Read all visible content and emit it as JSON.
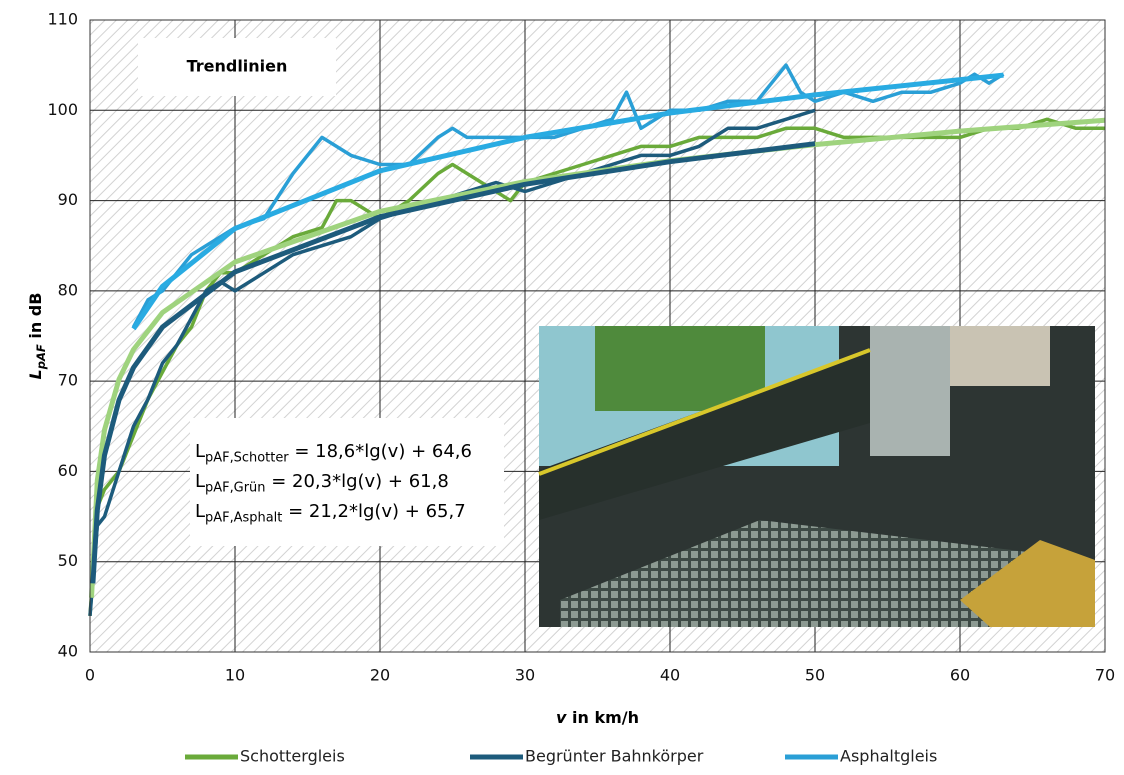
{
  "chart_data": {
    "type": "line",
    "xlabel": {
      "main": "v",
      "rest": " in km/h"
    },
    "ylabel": {
      "main": "L",
      "sub": "pAF",
      "rest": " in dB"
    },
    "xlim": [
      0,
      70
    ],
    "ylim": [
      40,
      110
    ],
    "xticks": [
      0,
      10,
      20,
      30,
      40,
      50,
      60,
      70
    ],
    "yticks": [
      40,
      50,
      60,
      70,
      80,
      90,
      100,
      110
    ],
    "grid": true,
    "series": [
      {
        "name": "Schottergleis",
        "color": "#6aaa3a",
        "x": [
          0,
          0.5,
          1,
          2,
          3,
          4,
          5,
          6,
          7,
          8,
          9,
          10,
          12,
          14,
          16,
          17,
          18,
          20,
          22,
          24,
          25,
          26,
          28,
          29,
          30,
          32,
          34,
          36,
          38,
          40,
          42,
          44,
          46,
          48,
          50,
          52,
          54,
          56,
          58,
          60,
          62,
          64,
          66,
          68,
          70
        ],
        "values": [
          44,
          56,
          58,
          60,
          64,
          68,
          71,
          74,
          76,
          80,
          82,
          82,
          84,
          86,
          87,
          90,
          90,
          88,
          90,
          93,
          94,
          93,
          91,
          90,
          92,
          93,
          94,
          95,
          96,
          96,
          97,
          97,
          97,
          98,
          98,
          97,
          97,
          97,
          97,
          97,
          98,
          98,
          99,
          98,
          98
        ]
      },
      {
        "name": "Begrünter Bahnkörper",
        "color": "#1d5b7c",
        "x": [
          0,
          0.5,
          1,
          2,
          3,
          4,
          5,
          6,
          7,
          8,
          9,
          10,
          12,
          14,
          16,
          18,
          20,
          22,
          24,
          26,
          28,
          30,
          32,
          34,
          36,
          38,
          40,
          42,
          44,
          46,
          48,
          50
        ],
        "values": [
          44,
          54,
          55,
          60,
          65,
          68,
          72,
          74,
          77,
          80,
          81,
          80,
          82,
          84,
          85,
          86,
          88,
          89,
          90,
          91,
          92,
          91,
          92,
          93,
          94,
          95,
          95,
          96,
          98,
          98,
          99,
          100
        ]
      },
      {
        "name": "Asphaltgleis",
        "color": "#2a9fd6",
        "x": [
          3,
          4,
          5,
          6,
          7,
          8,
          9,
          10,
          12,
          14,
          16,
          17,
          18,
          20,
          22,
          24,
          25,
          26,
          28,
          30,
          32,
          34,
          36,
          37,
          38,
          40,
          42,
          44,
          46,
          47,
          48,
          49,
          50,
          52,
          54,
          56,
          58,
          60,
          61,
          62,
          63
        ],
        "values": [
          76,
          79,
          80,
          82,
          84,
          85,
          86,
          87,
          88,
          93,
          97,
          96,
          95,
          94,
          94,
          97,
          98,
          97,
          97,
          97,
          97,
          98,
          99,
          102,
          98,
          100,
          100,
          101,
          101,
          103,
          105,
          102,
          101,
          102,
          101,
          102,
          102,
          103,
          104,
          103,
          104
        ]
      }
    ],
    "trendlines": [
      {
        "color": "#9fd37e",
        "x": [
          0.1,
          0.5,
          1,
          2,
          3,
          5,
          10,
          20,
          30,
          40,
          50,
          60,
          70
        ],
        "values": [
          46,
          59,
          64.6,
          70.2,
          73.5,
          77.6,
          83.2,
          88.8,
          92.1,
          94.4,
          96.2,
          97.7,
          98.9
        ]
      },
      {
        "color": "#1d5b7c",
        "x": [
          0.2,
          0.5,
          1,
          2,
          3,
          5,
          10,
          20,
          30,
          40,
          50
        ],
        "values": [
          47.6,
          55.7,
          61.8,
          67.9,
          71.5,
          76,
          82.1,
          88.2,
          91.8,
          94.3,
          96.3
        ]
      },
      {
        "color": "#29abe2",
        "x": [
          3,
          5,
          10,
          20,
          30,
          40,
          50,
          63
        ],
        "values": [
          75.8,
          80.5,
          86.9,
          93.3,
          97,
          99.7,
          101.7,
          103.9
        ]
      }
    ],
    "box_title": "Trendlinien",
    "equations": [
      {
        "main": "L",
        "sub": "pAF,Schotter",
        "rest": " = 18,6*lg(v) + 64,6"
      },
      {
        "main": "L",
        "sub": "pAF,Grün",
        "rest": " = 20,3*lg(v) + 61,8"
      },
      {
        "main": "L",
        "sub": "pAF,Asphalt",
        "rest": " = 21,2*lg(v) + 65,7"
      }
    ]
  }
}
